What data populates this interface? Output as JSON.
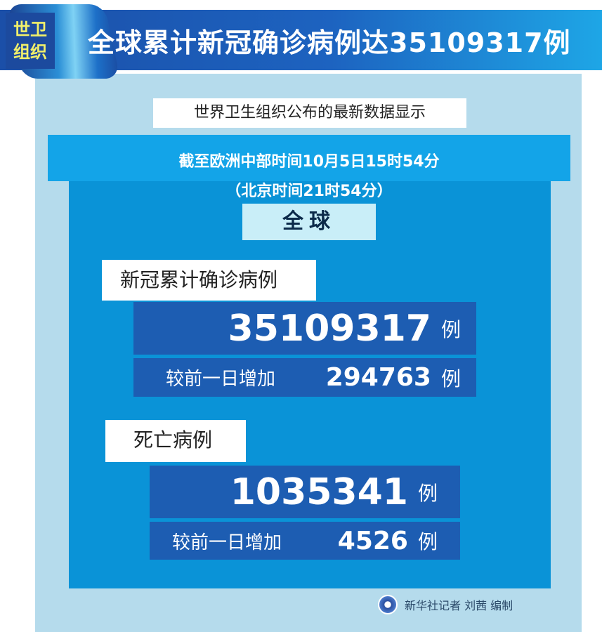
{
  "header": {
    "badge_line1": "世卫",
    "badge_line2": "组织",
    "title": "全球累计新冠确诊病例达35109317例"
  },
  "subtitle": "世界卫生组织公布的最新数据显示",
  "time": {
    "line1": "截至欧洲中部时间10月5日15时54分",
    "line2": "（北京时间21时54分）"
  },
  "scope": "全球",
  "cases": {
    "label": "新冠累计确诊病例",
    "total": "35109317",
    "unit": "例",
    "increase_label": "较前一日增加",
    "increase": "294763",
    "increase_unit": "例"
  },
  "deaths": {
    "label": "死亡病例",
    "total": "1035341",
    "unit": "例",
    "increase_label": "较前一日增加",
    "increase": "4526",
    "increase_unit": "例"
  },
  "credit": "新华社记者 刘茜 编制",
  "colors": {
    "header": "#1d63c0",
    "panel": "#b5dbec",
    "inner": "#0a93d7",
    "dark": "#1d5db2",
    "badge_text": "#f2f06a"
  }
}
